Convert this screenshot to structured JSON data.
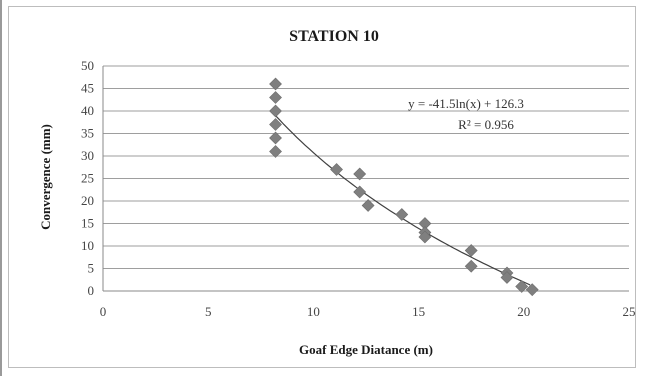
{
  "chart_data": {
    "type": "scatter",
    "title": "STATION 10",
    "xlabel": "Goaf Edge Diatance (m)",
    "ylabel": "Convergence (mm)",
    "xlim": [
      0,
      25
    ],
    "ylim": [
      0,
      50
    ],
    "xticks": [
      0,
      5,
      10,
      15,
      20,
      25
    ],
    "yticks": [
      0,
      5,
      10,
      15,
      20,
      25,
      30,
      35,
      40,
      45,
      50
    ],
    "grid": "horizontal",
    "marker_color": "#7f7f7f",
    "trend_color": "#404040",
    "points": [
      {
        "x": 8.2,
        "y": 46
      },
      {
        "x": 8.2,
        "y": 43
      },
      {
        "x": 8.2,
        "y": 40
      },
      {
        "x": 8.2,
        "y": 37
      },
      {
        "x": 8.2,
        "y": 34
      },
      {
        "x": 8.2,
        "y": 31
      },
      {
        "x": 11.1,
        "y": 27
      },
      {
        "x": 12.2,
        "y": 26
      },
      {
        "x": 12.2,
        "y": 22
      },
      {
        "x": 12.6,
        "y": 19
      },
      {
        "x": 14.2,
        "y": 17
      },
      {
        "x": 15.3,
        "y": 15
      },
      {
        "x": 15.3,
        "y": 13
      },
      {
        "x": 15.3,
        "y": 12
      },
      {
        "x": 17.5,
        "y": 9
      },
      {
        "x": 17.5,
        "y": 5.5
      },
      {
        "x": 19.2,
        "y": 4
      },
      {
        "x": 19.2,
        "y": 3
      },
      {
        "x": 19.9,
        "y": 1
      },
      {
        "x": 20.4,
        "y": 0.3
      }
    ],
    "trendline": {
      "type": "logarithmic",
      "a": -41.5,
      "b": 126.3,
      "x_range": [
        8.2,
        20.3
      ],
      "equation": "y = -41.5ln(x) + 126.3",
      "r_squared": "R² = 0.956"
    }
  }
}
